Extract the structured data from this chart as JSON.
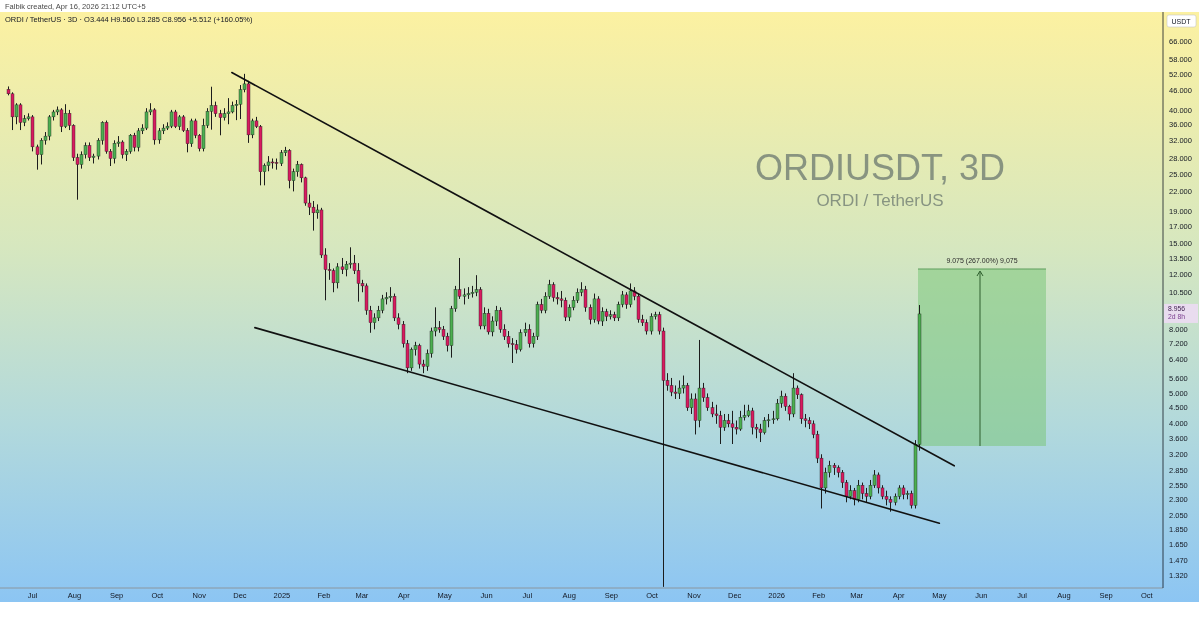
{
  "chart_data": {
    "type": "candlestick",
    "title": "ORDIUSDT, 3D",
    "subtitle": "ORDI / TetherUS · 3D · O3.444 H9.560 L3.285 C8.956 +5.512 (+160.05%)",
    "ylabel": "USDT",
    "x": [
      "2024-06-13",
      "2024-06-16",
      "2024-06-19",
      "2024-06-22",
      "2024-06-25",
      "2024-06-28",
      "2024-07-01",
      "2024-07-04",
      "2024-07-07",
      "2024-07-10",
      "2024-07-13",
      "2024-07-16",
      "2024-07-19",
      "2024-07-22",
      "2024-07-25",
      "2024-07-28",
      "2024-07-31",
      "2024-08-03",
      "2024-08-06",
      "2024-08-09",
      "2024-08-12",
      "2024-08-15",
      "2024-08-18",
      "2024-08-21",
      "2024-08-24",
      "2024-08-27",
      "2024-08-30",
      "2024-09-02",
      "2024-09-05",
      "2024-09-08",
      "2024-09-11",
      "2024-09-14",
      "2024-09-17",
      "2024-09-20",
      "2024-09-23",
      "2024-09-26",
      "2024-09-29",
      "2024-10-02",
      "2024-10-05",
      "2024-10-08",
      "2024-10-11",
      "2024-10-14",
      "2024-10-17",
      "2024-10-20",
      "2024-10-23",
      "2024-10-26",
      "2024-10-29",
      "2024-11-01",
      "2024-11-04",
      "2024-11-07",
      "2024-11-10",
      "2024-11-13",
      "2024-11-16",
      "2024-11-19",
      "2024-11-22",
      "2024-11-25",
      "2024-11-28",
      "2024-12-01",
      "2024-12-04",
      "2024-12-07",
      "2024-12-10",
      "2024-12-13",
      "2024-12-16",
      "2024-12-19",
      "2024-12-22",
      "2024-12-25",
      "2024-12-28",
      "2024-12-31",
      "2025-01-03",
      "2025-01-06",
      "2025-01-09",
      "2025-01-12",
      "2025-01-15",
      "2025-01-18",
      "2025-01-21",
      "2025-01-24",
      "2025-01-27",
      "2025-01-30",
      "2025-02-02",
      "2025-02-05",
      "2025-02-08",
      "2025-02-11",
      "2025-02-14",
      "2025-02-17",
      "2025-02-20",
      "2025-02-23",
      "2025-02-26",
      "2025-03-01",
      "2025-03-04",
      "2025-03-07",
      "2025-03-10",
      "2025-03-13",
      "2025-03-16",
      "2025-03-19",
      "2025-03-22",
      "2025-03-25",
      "2025-03-28",
      "2025-03-31",
      "2025-04-03",
      "2025-04-06",
      "2025-04-09",
      "2025-04-12",
      "2025-04-15",
      "2025-04-18",
      "2025-04-21",
      "2025-04-24",
      "2025-04-27",
      "2025-04-30",
      "2025-05-03",
      "2025-05-06",
      "2025-05-09",
      "2025-05-12",
      "2025-05-15",
      "2025-05-18",
      "2025-05-21",
      "2025-05-24",
      "2025-05-27",
      "2025-05-30",
      "2025-06-02",
      "2025-06-05",
      "2025-06-08",
      "2025-06-11",
      "2025-06-14",
      "2025-06-17",
      "2025-06-20",
      "2025-06-23",
      "2025-06-26",
      "2025-06-29",
      "2025-07-02",
      "2025-07-05",
      "2025-07-08",
      "2025-07-11",
      "2025-07-14",
      "2025-07-17",
      "2025-07-20",
      "2025-07-23",
      "2025-07-26",
      "2025-07-29",
      "2025-08-01",
      "2025-08-04",
      "2025-08-07",
      "2025-08-10",
      "2025-08-13",
      "2025-08-16",
      "2025-08-19",
      "2025-08-22",
      "2025-08-25",
      "2025-08-28",
      "2025-08-31",
      "2025-09-03",
      "2025-09-06",
      "2025-09-09",
      "2025-09-12",
      "2025-09-15",
      "2025-09-18",
      "2025-09-21",
      "2025-09-24",
      "2025-09-27",
      "2025-09-30",
      "2025-10-03",
      "2025-10-06",
      "2025-10-09",
      "2025-10-12",
      "2025-10-15",
      "2025-10-18",
      "2025-10-21",
      "2025-10-24",
      "2025-10-27",
      "2025-10-30",
      "2025-11-02",
      "2025-11-05",
      "2025-11-08",
      "2025-11-11",
      "2025-11-14",
      "2025-11-17",
      "2025-11-20",
      "2025-11-23",
      "2025-11-26",
      "2025-11-29",
      "2025-12-02",
      "2025-12-05",
      "2025-12-08",
      "2025-12-11",
      "2025-12-14",
      "2025-12-17",
      "2025-12-20",
      "2025-12-23",
      "2025-12-26",
      "2025-12-29",
      "2026-01-01",
      "2026-01-04",
      "2026-01-07",
      "2026-01-10",
      "2026-01-13",
      "2026-01-16",
      "2026-01-19",
      "2026-01-22",
      "2026-01-25",
      "2026-01-28",
      "2026-01-31",
      "2026-02-03",
      "2026-02-06",
      "2026-02-09",
      "2026-02-12",
      "2026-02-15",
      "2026-02-18",
      "2026-02-21",
      "2026-02-24",
      "2026-02-27",
      "2026-03-02",
      "2026-03-05",
      "2026-03-08",
      "2026-03-11",
      "2026-03-14",
      "2026-03-17",
      "2026-03-20",
      "2026-03-23",
      "2026-03-26",
      "2026-03-29",
      "2026-04-01",
      "2026-04-04",
      "2026-04-07",
      "2026-04-10",
      "2026-04-13",
      "2026-04-16"
    ],
    "ohlc": [
      [
        46.5,
        47.5,
        44.5,
        45
      ],
      [
        45,
        45.5,
        34.5,
        38
      ],
      [
        38,
        42,
        36,
        41.5
      ],
      [
        41.5,
        42,
        34.5,
        36.5
      ],
      [
        36.5,
        38.5,
        35.5,
        37.5
      ],
      [
        37.5,
        39,
        37,
        38
      ],
      [
        38,
        38.5,
        29.5,
        30.5
      ],
      [
        30.5,
        31,
        25.8,
        28.8
      ],
      [
        28.8,
        32.5,
        26.8,
        32
      ],
      [
        32,
        34,
        31,
        33
      ],
      [
        33,
        38.5,
        32,
        38
      ],
      [
        38,
        40,
        37,
        39.4
      ],
      [
        39.4,
        41,
        38.5,
        40
      ],
      [
        40,
        40.5,
        34,
        35.4
      ],
      [
        35.4,
        41.7,
        35,
        39
      ],
      [
        39,
        40,
        34.5,
        35.7
      ],
      [
        35.7,
        36,
        27.5,
        28.2
      ],
      [
        28.2,
        29,
        20.7,
        26.8
      ],
      [
        26.8,
        29.5,
        26,
        28.8
      ],
      [
        28.8,
        31.5,
        28,
        30.8
      ],
      [
        30.8,
        31.5,
        27.5,
        28.2
      ],
      [
        28.2,
        29,
        27,
        28.5
      ],
      [
        28.5,
        32.5,
        27.8,
        32
      ],
      [
        32,
        36.8,
        31,
        36.5
      ],
      [
        36.5,
        37,
        29,
        29.5
      ],
      [
        29.5,
        30,
        26.5,
        28
      ],
      [
        28,
        32,
        27,
        31.3
      ],
      [
        31.3,
        33,
        30.5,
        31.6
      ],
      [
        31.6,
        32,
        28,
        28.8
      ],
      [
        28.8,
        30,
        27.5,
        29.5
      ],
      [
        29.5,
        33.5,
        29,
        33.2
      ],
      [
        33.2,
        33.8,
        29.5,
        30.4
      ],
      [
        30.4,
        35,
        29.5,
        34.3
      ],
      [
        34.3,
        36,
        33.5,
        35
      ],
      [
        35,
        40.5,
        34.5,
        39.4
      ],
      [
        39.4,
        42,
        38.5,
        40
      ],
      [
        40,
        40.5,
        31,
        32.1
      ],
      [
        32.1,
        35,
        31.2,
        34.3
      ],
      [
        34.3,
        36,
        33.5,
        35
      ],
      [
        35,
        36.5,
        34.5,
        35.5
      ],
      [
        35.5,
        40,
        35,
        39.4
      ],
      [
        39.4,
        40,
        35,
        35.4
      ],
      [
        35.4,
        38.5,
        34.5,
        38
      ],
      [
        38,
        38.5,
        34,
        34.4
      ],
      [
        34.4,
        35,
        29.3,
        31.2
      ],
      [
        31.2,
        37.5,
        30.5,
        36.9
      ],
      [
        36.9,
        37.5,
        32.5,
        33.2
      ],
      [
        33.2,
        33.5,
        29.5,
        30.1
      ],
      [
        30.1,
        37.5,
        29.5,
        35.7
      ],
      [
        35.7,
        40.5,
        35,
        39.6
      ],
      [
        39.6,
        47.4,
        34.6,
        41.3
      ],
      [
        41.3,
        42.5,
        38,
        38.9
      ],
      [
        38.9,
        40,
        33.2,
        37.8
      ],
      [
        37.8,
        40.5,
        37,
        38.9
      ],
      [
        38.9,
        43.6,
        36,
        39.4
      ],
      [
        39.4,
        42.5,
        39,
        41.3
      ],
      [
        41.3,
        43,
        37.1,
        41.7
      ],
      [
        41.7,
        48,
        37.4,
        46.4
      ],
      [
        46.4,
        52.1,
        45.5,
        48.4
      ],
      [
        48.4,
        49.5,
        31.4,
        33.3
      ],
      [
        33.3,
        37.5,
        32.5,
        36.9
      ],
      [
        36.9,
        38,
        35,
        35.4
      ],
      [
        35.4,
        35.8,
        23,
        25.4
      ],
      [
        25.4,
        27,
        23,
        26.6
      ],
      [
        26.6,
        28.5,
        25.5,
        27.3
      ],
      [
        27.3,
        28,
        26,
        27.2
      ],
      [
        27.2,
        28,
        25.8,
        27
      ],
      [
        27,
        29.8,
        26.5,
        29.2
      ],
      [
        29.2,
        30.5,
        28.5,
        29.7
      ],
      [
        29.7,
        30,
        22.5,
        23.8
      ],
      [
        23.8,
        26,
        22,
        25.4
      ],
      [
        25.4,
        27.5,
        24.5,
        26.8
      ],
      [
        26.8,
        27,
        23.5,
        24.3
      ],
      [
        24.3,
        24.5,
        19.8,
        20.2
      ],
      [
        20.2,
        21.5,
        18.5,
        19.6
      ],
      [
        19.6,
        20.5,
        16.5,
        18.8
      ],
      [
        18.8,
        20,
        18,
        19.2
      ],
      [
        19.2,
        19.5,
        13.5,
        13.8
      ],
      [
        13.8,
        14.5,
        9.9,
        12.4
      ],
      [
        12.4,
        13,
        11.5,
        12.3
      ],
      [
        12.3,
        12.5,
        10.5,
        11.25
      ],
      [
        11.25,
        13,
        10.8,
        12.65
      ],
      [
        12.65,
        13.5,
        12,
        12.4
      ],
      [
        12.4,
        13.2,
        11.8,
        12.9
      ],
      [
        12.9,
        14.6,
        12.5,
        13
      ],
      [
        13,
        13.8,
        12,
        12.3
      ],
      [
        12.3,
        13,
        9.8,
        11.2
      ],
      [
        11.2,
        11.5,
        10.5,
        11
      ],
      [
        11,
        11.2,
        8.9,
        9.2
      ],
      [
        9.2,
        9.5,
        7.8,
        8.4
      ],
      [
        8.4,
        9,
        8,
        8.7
      ],
      [
        8.7,
        9.5,
        8.5,
        9.2
      ],
      [
        9.2,
        10.3,
        9,
        10
      ],
      [
        10,
        10.5,
        9.6,
        10.1
      ],
      [
        10.1,
        10.9,
        9.8,
        10.2
      ],
      [
        10.2,
        10.4,
        8.5,
        8.7
      ],
      [
        8.7,
        9,
        8,
        8.3
      ],
      [
        8.3,
        8.5,
        7,
        7.2
      ],
      [
        7.2,
        7.4,
        5.8,
        6.03
      ],
      [
        6.03,
        7,
        5.9,
        6.9
      ],
      [
        6.9,
        7.3,
        6.6,
        7.1
      ],
      [
        7.1,
        7.2,
        6,
        6.2
      ],
      [
        6.2,
        6.4,
        5.8,
        6.1
      ],
      [
        6.1,
        6.9,
        5.9,
        6.7
      ],
      [
        6.7,
        8.1,
        6.5,
        7.9
      ],
      [
        7.9,
        9.4,
        7.6,
        8.1
      ],
      [
        8.1,
        8.5,
        7.8,
        8
      ],
      [
        8,
        8.2,
        7.4,
        7.6
      ],
      [
        7.6,
        7.8,
        6.8,
        7.1
      ],
      [
        7.1,
        9.5,
        6.5,
        9.3
      ],
      [
        9.3,
        11,
        9.1,
        10.7
      ],
      [
        10.7,
        13.5,
        10,
        10.2
      ],
      [
        10.2,
        10.8,
        9.6,
        10.3
      ],
      [
        10.3,
        10.9,
        10,
        10.4
      ],
      [
        10.4,
        11,
        10.1,
        10.5
      ],
      [
        10.5,
        11.9,
        10.2,
        10.7
      ],
      [
        10.7,
        10.9,
        8,
        8.2
      ],
      [
        8.2,
        9.4,
        8,
        9
      ],
      [
        9,
        9.3,
        7.7,
        7.85
      ],
      [
        7.85,
        8.8,
        7.6,
        8.5
      ],
      [
        8.5,
        9.5,
        8.2,
        9.2
      ],
      [
        9.2,
        9.4,
        7.8,
        8
      ],
      [
        8,
        8.3,
        7.4,
        7.6
      ],
      [
        7.6,
        7.9,
        7,
        7.2
      ],
      [
        7.2,
        7.5,
        6.25,
        7.15
      ],
      [
        7.15,
        7.4,
        6.7,
        6.9
      ],
      [
        6.9,
        8,
        6.8,
        7.8
      ],
      [
        7.8,
        8.4,
        7.6,
        8
      ],
      [
        8,
        8.3,
        7,
        7.2
      ],
      [
        7.2,
        7.8,
        7,
        7.6
      ],
      [
        7.6,
        9.8,
        7.4,
        9.6
      ],
      [
        9.6,
        10,
        9,
        9.2
      ],
      [
        9.2,
        10.5,
        9,
        10.2
      ],
      [
        10.2,
        11.5,
        10,
        11.1
      ],
      [
        11.1,
        11.3,
        9.8,
        10.1
      ],
      [
        10.1,
        10.5,
        9.6,
        10
      ],
      [
        10,
        10.6,
        9.4,
        9.9
      ],
      [
        9.9,
        10.1,
        8.5,
        8.75
      ],
      [
        8.75,
        9.6,
        8.5,
        9.4
      ],
      [
        9.4,
        10.2,
        9.2,
        9.9
      ],
      [
        9.9,
        10.8,
        9.7,
        10.5
      ],
      [
        10.5,
        11.3,
        10.2,
        10.7
      ],
      [
        10.7,
        11,
        9.1,
        9.4
      ],
      [
        9.4,
        9.6,
        8.3,
        8.6
      ],
      [
        8.6,
        10.4,
        8.4,
        10
      ],
      [
        10,
        10.2,
        8.3,
        8.5
      ],
      [
        8.5,
        9.4,
        8.2,
        9.1
      ],
      [
        9.1,
        9.3,
        8.5,
        8.8
      ],
      [
        8.8,
        9.2,
        8.6,
        8.9
      ],
      [
        8.9,
        9.1,
        8.5,
        8.7
      ],
      [
        8.7,
        9.8,
        8.5,
        9.6
      ],
      [
        9.6,
        10.6,
        9.4,
        10.3
      ],
      [
        10.3,
        10.5,
        9.3,
        9.6
      ],
      [
        9.6,
        11.2,
        9.4,
        10.6
      ],
      [
        10.6,
        10.9,
        9.9,
        10.2
      ],
      [
        10.2,
        10.4,
        8.4,
        8.6
      ],
      [
        8.6,
        8.9,
        8.2,
        8.4
      ],
      [
        8.4,
        8.6,
        7.7,
        7.9
      ],
      [
        7.9,
        9,
        7.7,
        8.8
      ],
      [
        8.8,
        9.1,
        8.6,
        8.9
      ],
      [
        8.9,
        9.1,
        7.7,
        7.9
      ],
      [
        7.9,
        8.1,
        1.21,
        5.5
      ],
      [
        5.5,
        5.8,
        5.1,
        5.3
      ],
      [
        5.3,
        5.6,
        4.9,
        5.05
      ],
      [
        5.05,
        5.3,
        4.8,
        5
      ],
      [
        5,
        5.5,
        4.8,
        5.2
      ],
      [
        5.2,
        5.7,
        5,
        5.3
      ],
      [
        5.3,
        5.4,
        4.4,
        4.5
      ],
      [
        4.5,
        5,
        4.3,
        4.8
      ],
      [
        4.8,
        5,
        3.7,
        4.1
      ],
      [
        4.1,
        7.4,
        3.9,
        5.2
      ],
      [
        5.2,
        5.4,
        4.7,
        4.85
      ],
      [
        4.85,
        5,
        4.4,
        4.5
      ],
      [
        4.5,
        4.7,
        4.2,
        4.3
      ],
      [
        4.3,
        4.6,
        4,
        4.25
      ],
      [
        4.25,
        4.4,
        3.45,
        3.9
      ],
      [
        3.9,
        4.3,
        3.8,
        4.1
      ],
      [
        4.1,
        4.3,
        3.9,
        4
      ],
      [
        4,
        4.4,
        3.45,
        3.9
      ],
      [
        3.9,
        4.1,
        3.7,
        3.85
      ],
      [
        3.85,
        4.4,
        3.8,
        4.2
      ],
      [
        4.2,
        4.6,
        4.1,
        4.25
      ],
      [
        4.25,
        4.6,
        4.2,
        4.4
      ],
      [
        4.4,
        4.5,
        3.7,
        3.9
      ],
      [
        3.9,
        4,
        3.6,
        3.85
      ],
      [
        3.85,
        4,
        3.5,
        3.75
      ],
      [
        3.75,
        4.2,
        3.7,
        4.1
      ],
      [
        4.1,
        4.3,
        3.9,
        4.12
      ],
      [
        4.12,
        4.4,
        4,
        4.15
      ],
      [
        4.15,
        4.8,
        4.1,
        4.65
      ],
      [
        4.65,
        5.1,
        4.5,
        4.9
      ],
      [
        4.9,
        5,
        4.4,
        4.55
      ],
      [
        4.55,
        4.6,
        4.1,
        4.3
      ],
      [
        4.3,
        5.8,
        4.2,
        5.2
      ],
      [
        5.2,
        5.3,
        4.8,
        4.95
      ],
      [
        4.95,
        5,
        4,
        4.15
      ],
      [
        4.15,
        4.3,
        3.9,
        4.1
      ],
      [
        4.1,
        4.2,
        3.85,
        4
      ],
      [
        4,
        4.1,
        3.6,
        3.7
      ],
      [
        3.7,
        3.8,
        3,
        3.11
      ],
      [
        3.11,
        3.2,
        2.15,
        2.5
      ],
      [
        2.5,
        2.9,
        2.4,
        2.8
      ],
      [
        2.8,
        3.05,
        2.7,
        2.95
      ],
      [
        2.95,
        3,
        2.75,
        2.9
      ],
      [
        2.9,
        2.95,
        2.7,
        2.8
      ],
      [
        2.8,
        2.85,
        2.5,
        2.6
      ],
      [
        2.6,
        2.65,
        2.25,
        2.35
      ],
      [
        2.35,
        2.55,
        2.3,
        2.45
      ],
      [
        2.45,
        2.5,
        2.2,
        2.3
      ],
      [
        2.3,
        2.65,
        2.25,
        2.55
      ],
      [
        2.55,
        2.6,
        2.3,
        2.4
      ],
      [
        2.4,
        2.5,
        2.25,
        2.35
      ],
      [
        2.35,
        2.65,
        2.3,
        2.55
      ],
      [
        2.55,
        2.85,
        2.5,
        2.75
      ],
      [
        2.75,
        2.8,
        2.4,
        2.5
      ],
      [
        2.5,
        2.55,
        2.3,
        2.35
      ],
      [
        2.35,
        2.45,
        2.2,
        2.3
      ],
      [
        2.3,
        2.35,
        2.1,
        2.25
      ],
      [
        2.25,
        2.4,
        2.2,
        2.35
      ],
      [
        2.35,
        2.55,
        2.3,
        2.5
      ],
      [
        2.5,
        2.55,
        2.3,
        2.38
      ],
      [
        2.38,
        2.45,
        2.3,
        2.4
      ],
      [
        2.4,
        2.45,
        2.15,
        2.2
      ],
      [
        2.2,
        3.55,
        2.15,
        3.444
      ],
      [
        3.444,
        9.56,
        3.285,
        8.956
      ]
    ],
    "colors": [
      "#d81b60",
      "#d81b60",
      "#4caf50",
      "#d81b60",
      "#4caf50",
      "#4caf50",
      "#d81b60",
      "#d81b60",
      "#4caf50",
      "#4caf50",
      "#4caf50",
      "#4caf50",
      "#4caf50",
      "#d81b60",
      "#4caf50",
      "#d81b60",
      "#d81b60",
      "#d81b60",
      "#4caf50",
      "#4caf50",
      "#d81b60",
      "#4caf50",
      "#4caf50",
      "#4caf50",
      "#d81b60",
      "#d81b60",
      "#4caf50",
      "#4caf50",
      "#d81b60",
      "#4caf50",
      "#4caf50",
      "#d81b60",
      "#4caf50",
      "#4caf50",
      "#4caf50",
      "#4caf50",
      "#d81b60",
      "#4caf50",
      "#4caf50",
      "#4caf50",
      "#4caf50",
      "#d81b60",
      "#4caf50",
      "#d81b60",
      "#d81b60",
      "#4caf50",
      "#d81b60",
      "#d81b60",
      "#4caf50",
      "#4caf50",
      "#4caf50",
      "#d81b60",
      "#d81b60",
      "#4caf50",
      "#4caf50",
      "#4caf50",
      "#4caf50",
      "#4caf50",
      "#4caf50",
      "#d81b60",
      "#4caf50",
      "#d81b60",
      "#d81b60",
      "#4caf50",
      "#4caf50",
      "#d81b60",
      "#d81b60",
      "#4caf50",
      "#4caf50",
      "#d81b60",
      "#4caf50",
      "#4caf50",
      "#d81b60",
      "#d81b60",
      "#d81b60",
      "#d81b60",
      "#4caf50",
      "#d81b60",
      "#d81b60",
      "#d81b60",
      "#d81b60",
      "#4caf50",
      "#d81b60",
      "#4caf50",
      "#4caf50",
      "#d81b60",
      "#d81b60",
      "#d81b60",
      "#d81b60",
      "#d81b60",
      "#4caf50",
      "#4caf50",
      "#4caf50",
      "#4caf50",
      "#4caf50",
      "#d81b60",
      "#d81b60",
      "#d81b60",
      "#d81b60",
      "#4caf50",
      "#4caf50",
      "#d81b60",
      "#d81b60",
      "#4caf50",
      "#4caf50",
      "#4caf50",
      "#d81b60",
      "#d81b60",
      "#d81b60",
      "#4caf50",
      "#4caf50",
      "#d81b60",
      "#4caf50",
      "#4caf50",
      "#4caf50",
      "#4caf50",
      "#d81b60",
      "#4caf50",
      "#d81b60",
      "#4caf50",
      "#4caf50",
      "#d81b60",
      "#d81b60",
      "#d81b60",
      "#d81b60",
      "#d81b60",
      "#4caf50",
      "#4caf50",
      "#d81b60",
      "#4caf50",
      "#4caf50",
      "#d81b60",
      "#4caf50",
      "#4caf50",
      "#d81b60",
      "#d81b60",
      "#d81b60",
      "#d81b60",
      "#4caf50",
      "#4caf50",
      "#4caf50",
      "#4caf50",
      "#d81b60",
      "#d81b60",
      "#4caf50",
      "#d81b60",
      "#4caf50",
      "#d81b60",
      "#4caf50",
      "#d81b60",
      "#4caf50",
      "#4caf50",
      "#d81b60",
      "#4caf50",
      "#d81b60",
      "#d81b60",
      "#d81b60",
      "#d81b60",
      "#4caf50",
      "#4caf50",
      "#d81b60",
      "#d81b60",
      "#d81b60",
      "#d81b60",
      "#d81b60",
      "#4caf50",
      "#4caf50",
      "#d81b60",
      "#4caf50",
      "#d81b60",
      "#4caf50",
      "#d81b60",
      "#d81b60",
      "#d81b60",
      "#d81b60",
      "#d81b60",
      "#4caf50",
      "#d81b60",
      "#d81b60",
      "#d81b60",
      "#4caf50",
      "#4caf50",
      "#4caf50",
      "#d81b60",
      "#d81b60",
      "#d81b60",
      "#4caf50",
      "#4caf50",
      "#4caf50",
      "#4caf50",
      "#4caf50",
      "#d81b60",
      "#d81b60",
      "#4caf50",
      "#d81b60",
      "#d81b60",
      "#d81b60",
      "#d81b60",
      "#d81b60",
      "#d81b60",
      "#d81b60",
      "#4caf50",
      "#4caf50",
      "#d81b60",
      "#d81b60",
      "#d81b60",
      "#d81b60",
      "#4caf50",
      "#d81b60",
      "#4caf50",
      "#d81b60",
      "#d81b60",
      "#4caf50",
      "#4caf50",
      "#d81b60",
      "#d81b60",
      "#d81b60",
      "#d81b60",
      "#4caf50",
      "#4caf50",
      "#d81b60",
      "#4caf50",
      "#d81b60",
      "#4caf50",
      "#4caf50"
    ],
    "series": [
      {
        "type": "line",
        "x": [
          "2024-11-25",
          "2026-05-12"
        ],
        "values": [
          52.6,
          2.94
        ],
        "color": "#111111"
      },
      {
        "type": "line",
        "x": [
          "2024-12-12",
          "2026-05-01"
        ],
        "values": [
          8.1,
          1.93
        ],
        "color": "#111111"
      }
    ],
    "xlim": [
      "2024-06-07",
      "2026-10-13"
    ],
    "xticks": [
      {
        "value": "2024-07-01",
        "label": "Jul"
      },
      {
        "value": "2024-08-01",
        "label": "Aug"
      },
      {
        "value": "2024-09-01",
        "label": "Sep"
      },
      {
        "value": "2024-10-01",
        "label": "Oct"
      },
      {
        "value": "2024-11-01",
        "label": "Nov"
      },
      {
        "value": "2024-12-01",
        "label": "Dec"
      },
      {
        "value": "2025-01-01",
        "label": "2025"
      },
      {
        "value": "2025-02-01",
        "label": "Feb"
      },
      {
        "value": "2025-03-01",
        "label": "Mar"
      },
      {
        "value": "2025-04-01",
        "label": "Apr"
      },
      {
        "value": "2025-05-01",
        "label": "May"
      },
      {
        "value": "2025-06-01",
        "label": "Jun"
      },
      {
        "value": "2025-07-01",
        "label": "Jul"
      },
      {
        "value": "2025-08-01",
        "label": "Aug"
      },
      {
        "value": "2025-09-01",
        "label": "Sep"
      },
      {
        "value": "2025-10-01",
        "label": "Oct"
      },
      {
        "value": "2025-11-01",
        "label": "Nov"
      },
      {
        "value": "2025-12-01",
        "label": "Dec"
      },
      {
        "value": "2026-01-01",
        "label": "2026"
      },
      {
        "value": "2026-02-01",
        "label": "Feb"
      },
      {
        "value": "2026-03-01",
        "label": "Mar"
      },
      {
        "value": "2026-04-01",
        "label": "Apr"
      },
      {
        "value": "2026-05-01",
        "label": "May"
      },
      {
        "value": "2026-06-01",
        "label": "Jun"
      },
      {
        "value": "2026-07-01",
        "label": "Jul"
      },
      {
        "value": "2026-08-01",
        "label": "Aug"
      },
      {
        "value": "2026-09-01",
        "label": "Sep"
      },
      {
        "value": "2026-10-01",
        "label": "Oct"
      }
    ],
    "ylim": [
      1.2,
      82
    ],
    "yticks": [
      {
        "value": 66,
        "label": "66.000"
      },
      {
        "value": 58,
        "label": "58.000"
      },
      {
        "value": 52,
        "label": "52.000"
      },
      {
        "value": 46,
        "label": "46.000"
      },
      {
        "value": 40,
        "label": "40.000"
      },
      {
        "value": 36,
        "label": "36.000"
      },
      {
        "value": 32,
        "label": "32.000"
      },
      {
        "value": 28,
        "label": "28.000"
      },
      {
        "value": 25,
        "label": "25.000"
      },
      {
        "value": 22,
        "label": "22.000"
      },
      {
        "value": 19,
        "label": "19.000"
      },
      {
        "value": 17,
        "label": "17.000"
      },
      {
        "value": 15,
        "label": "15.000"
      },
      {
        "value": 13.5,
        "label": "13.500"
      },
      {
        "value": 12,
        "label": "12.000"
      },
      {
        "value": 10.5,
        "label": "10.500"
      },
      {
        "value": 8,
        "label": "8.000"
      },
      {
        "value": 7.2,
        "label": "7.200"
      },
      {
        "value": 6.4,
        "label": "6.400"
      },
      {
        "value": 5.6,
        "label": "5.600"
      },
      {
        "value": 5,
        "label": "5.000"
      },
      {
        "value": 4.5,
        "label": "4.500"
      },
      {
        "value": 4,
        "label": "4.000"
      },
      {
        "value": 3.6,
        "label": "3.600"
      },
      {
        "value": 3.2,
        "label": "3.200"
      },
      {
        "value": 2.85,
        "label": "2.850"
      },
      {
        "value": 2.55,
        "label": "2.550"
      },
      {
        "value": 2.3,
        "label": "2.300"
      },
      {
        "value": 2.05,
        "label": "2.050"
      },
      {
        "value": 1.85,
        "label": "1.850"
      },
      {
        "value": 1.65,
        "label": "1.650"
      },
      {
        "value": 1.47,
        "label": "1.470"
      },
      {
        "value": 1.32,
        "label": "1.320"
      }
    ],
    "log": true,
    "annotations": [
      "Falbik created, Apr 16, 2026 21:12 UTC+5",
      "ORDI / TetherUS",
      "8.956",
      "2d 8h",
      "9.075 (267.00%) 9,075"
    ]
  }
}
